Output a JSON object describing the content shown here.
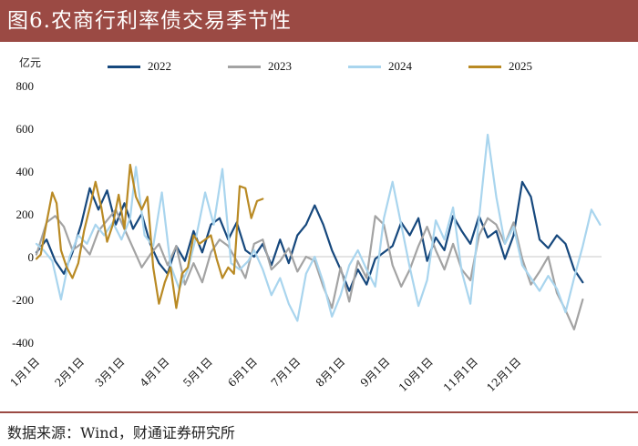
{
  "title": "图6.农商行利率债交易季节性",
  "source": "数据来源：Wind，财通证券研究所",
  "chart_data": {
    "type": "line",
    "ylabel": "亿元",
    "ylim": [
      -400,
      800
    ],
    "yticks": [
      -400,
      -200,
      0,
      200,
      400,
      600,
      800
    ],
    "x_ticks": [
      {
        "label": "1月1日",
        "day": 1
      },
      {
        "label": "2月1日",
        "day": 32
      },
      {
        "label": "3月1日",
        "day": 60
      },
      {
        "label": "4月1日",
        "day": 91
      },
      {
        "label": "5月1日",
        "day": 121
      },
      {
        "label": "6月1日",
        "day": 152
      },
      {
        "label": "7月1日",
        "day": 182
      },
      {
        "label": "8月1日",
        "day": 213
      },
      {
        "label": "9月1日",
        "day": 244
      },
      {
        "label": "10月1日",
        "day": 274
      },
      {
        "label": "11月1日",
        "day": 305
      },
      {
        "label": "12月1日",
        "day": 335
      }
    ],
    "legend_position": "top",
    "grid": false,
    "series": [
      {
        "name": "2022",
        "color": "#16487d",
        "points": [
          [
            1,
            20
          ],
          [
            8,
            80
          ],
          [
            14,
            -20
          ],
          [
            20,
            -80
          ],
          [
            26,
            20
          ],
          [
            32,
            150
          ],
          [
            38,
            320
          ],
          [
            44,
            220
          ],
          [
            50,
            310
          ],
          [
            56,
            150
          ],
          [
            62,
            250
          ],
          [
            68,
            130
          ],
          [
            74,
            200
          ],
          [
            80,
            60
          ],
          [
            86,
            -30
          ],
          [
            92,
            -80
          ],
          [
            98,
            50
          ],
          [
            104,
            -20
          ],
          [
            110,
            120
          ],
          [
            116,
            20
          ],
          [
            122,
            150
          ],
          [
            128,
            180
          ],
          [
            134,
            80
          ],
          [
            140,
            160
          ],
          [
            146,
            30
          ],
          [
            152,
            0
          ],
          [
            158,
            60
          ],
          [
            164,
            -40
          ],
          [
            170,
            80
          ],
          [
            176,
            -30
          ],
          [
            182,
            100
          ],
          [
            188,
            150
          ],
          [
            194,
            240
          ],
          [
            200,
            150
          ],
          [
            206,
            30
          ],
          [
            212,
            -60
          ],
          [
            218,
            -160
          ],
          [
            224,
            -60
          ],
          [
            230,
            -130
          ],
          [
            236,
            -10
          ],
          [
            242,
            20
          ],
          [
            248,
            50
          ],
          [
            254,
            160
          ],
          [
            260,
            100
          ],
          [
            266,
            180
          ],
          [
            272,
            -20
          ],
          [
            278,
            90
          ],
          [
            284,
            30
          ],
          [
            290,
            190
          ],
          [
            296,
            120
          ],
          [
            302,
            60
          ],
          [
            308,
            190
          ],
          [
            314,
            90
          ],
          [
            320,
            120
          ],
          [
            326,
            -10
          ],
          [
            332,
            100
          ],
          [
            338,
            350
          ],
          [
            344,
            280
          ],
          [
            350,
            80
          ],
          [
            356,
            40
          ],
          [
            362,
            100
          ],
          [
            368,
            60
          ],
          [
            374,
            -60
          ],
          [
            380,
            -120
          ]
        ]
      },
      {
        "name": "2023",
        "color": "#a3a3a3",
        "points": [
          [
            1,
            10
          ],
          [
            8,
            160
          ],
          [
            14,
            190
          ],
          [
            20,
            140
          ],
          [
            26,
            30
          ],
          [
            32,
            60
          ],
          [
            38,
            10
          ],
          [
            44,
            120
          ],
          [
            50,
            170
          ],
          [
            56,
            220
          ],
          [
            62,
            130
          ],
          [
            68,
            40
          ],
          [
            74,
            -50
          ],
          [
            80,
            10
          ],
          [
            86,
            60
          ],
          [
            92,
            -40
          ],
          [
            98,
            50
          ],
          [
            104,
            -130
          ],
          [
            110,
            -30
          ],
          [
            116,
            -120
          ],
          [
            122,
            20
          ],
          [
            128,
            80
          ],
          [
            134,
            50
          ],
          [
            140,
            -20
          ],
          [
            146,
            -100
          ],
          [
            152,
            60
          ],
          [
            158,
            80
          ],
          [
            164,
            -60
          ],
          [
            170,
            -20
          ],
          [
            176,
            40
          ],
          [
            182,
            -70
          ],
          [
            188,
            0
          ],
          [
            194,
            -20
          ],
          [
            200,
            -140
          ],
          [
            206,
            -240
          ],
          [
            212,
            -50
          ],
          [
            218,
            -210
          ],
          [
            224,
            -20
          ],
          [
            230,
            -100
          ],
          [
            236,
            190
          ],
          [
            242,
            150
          ],
          [
            248,
            -40
          ],
          [
            254,
            -140
          ],
          [
            260,
            -60
          ],
          [
            266,
            50
          ],
          [
            272,
            140
          ],
          [
            278,
            30
          ],
          [
            284,
            -60
          ],
          [
            290,
            60
          ],
          [
            296,
            -60
          ],
          [
            302,
            -110
          ],
          [
            308,
            100
          ],
          [
            314,
            180
          ],
          [
            320,
            150
          ],
          [
            326,
            60
          ],
          [
            332,
            160
          ],
          [
            338,
            -10
          ],
          [
            344,
            -130
          ],
          [
            350,
            -70
          ],
          [
            356,
            0
          ],
          [
            362,
            -170
          ],
          [
            368,
            -250
          ],
          [
            374,
            -340
          ],
          [
            380,
            -200
          ]
        ]
      },
      {
        "name": "2024",
        "color": "#a9d5ee",
        "points": [
          [
            1,
            60
          ],
          [
            6,
            30
          ],
          [
            12,
            -20
          ],
          [
            18,
            -200
          ],
          [
            24,
            0
          ],
          [
            30,
            100
          ],
          [
            36,
            60
          ],
          [
            42,
            150
          ],
          [
            48,
            100
          ],
          [
            54,
            160
          ],
          [
            60,
            80
          ],
          [
            66,
            180
          ],
          [
            70,
            420
          ],
          [
            76,
            100
          ],
          [
            82,
            50
          ],
          [
            88,
            300
          ],
          [
            94,
            -40
          ],
          [
            100,
            -150
          ],
          [
            106,
            -60
          ],
          [
            112,
            100
          ],
          [
            118,
            300
          ],
          [
            124,
            150
          ],
          [
            130,
            410
          ],
          [
            136,
            -30
          ],
          [
            142,
            -60
          ],
          [
            148,
            -20
          ],
          [
            152,
            30
          ],
          [
            158,
            -60
          ],
          [
            164,
            -180
          ],
          [
            170,
            -100
          ],
          [
            176,
            -220
          ],
          [
            182,
            -300
          ],
          [
            188,
            -80
          ],
          [
            194,
            0
          ],
          [
            200,
            -120
          ],
          [
            206,
            -280
          ],
          [
            212,
            -180
          ],
          [
            218,
            -40
          ],
          [
            224,
            30
          ],
          [
            230,
            -60
          ],
          [
            236,
            -140
          ],
          [
            242,
            180
          ],
          [
            248,
            350
          ],
          [
            254,
            150
          ],
          [
            260,
            -50
          ],
          [
            266,
            -230
          ],
          [
            272,
            -110
          ],
          [
            278,
            170
          ],
          [
            284,
            80
          ],
          [
            290,
            230
          ],
          [
            296,
            -70
          ],
          [
            302,
            -220
          ],
          [
            308,
            180
          ],
          [
            314,
            570
          ],
          [
            320,
            280
          ],
          [
            326,
            60
          ],
          [
            332,
            140
          ],
          [
            338,
            -40
          ],
          [
            344,
            -100
          ],
          [
            350,
            -160
          ],
          [
            356,
            -90
          ],
          [
            362,
            -150
          ],
          [
            368,
            -260
          ],
          [
            374,
            -100
          ],
          [
            380,
            50
          ],
          [
            386,
            220
          ],
          [
            392,
            150
          ]
        ]
      },
      {
        "name": "2025",
        "color": "#b98a24",
        "points": [
          [
            1,
            -10
          ],
          [
            4,
            10
          ],
          [
            8,
            160
          ],
          [
            12,
            300
          ],
          [
            15,
            250
          ],
          [
            18,
            30
          ],
          [
            22,
            -50
          ],
          [
            26,
            -100
          ],
          [
            30,
            -30
          ],
          [
            34,
            120
          ],
          [
            38,
            230
          ],
          [
            42,
            350
          ],
          [
            46,
            230
          ],
          [
            50,
            70
          ],
          [
            54,
            150
          ],
          [
            58,
            290
          ],
          [
            62,
            130
          ],
          [
            66,
            430
          ],
          [
            70,
            280
          ],
          [
            74,
            220
          ],
          [
            78,
            280
          ],
          [
            82,
            -50
          ],
          [
            86,
            -220
          ],
          [
            90,
            -120
          ],
          [
            94,
            -50
          ],
          [
            98,
            -240
          ],
          [
            102,
            -80
          ],
          [
            106,
            -50
          ],
          [
            110,
            100
          ],
          [
            114,
            60
          ],
          [
            118,
            80
          ],
          [
            122,
            100
          ],
          [
            126,
            -10
          ],
          [
            130,
            -100
          ],
          [
            134,
            -50
          ],
          [
            138,
            -80
          ],
          [
            142,
            330
          ],
          [
            146,
            320
          ],
          [
            150,
            180
          ],
          [
            154,
            260
          ],
          [
            158,
            270
          ]
        ]
      }
    ]
  }
}
